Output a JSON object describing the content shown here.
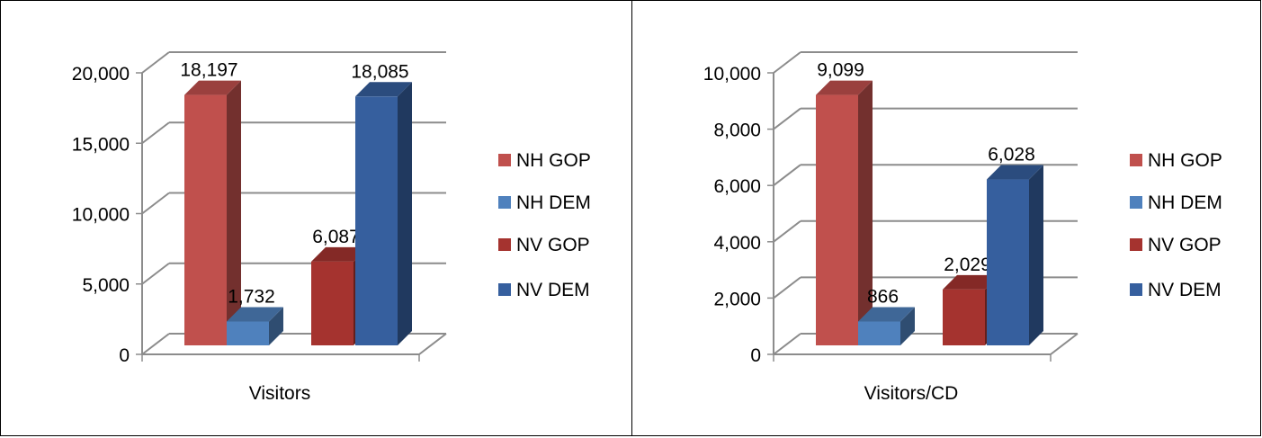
{
  "chart_data": [
    {
      "type": "bar",
      "title": "",
      "xlabel": "Visitors",
      "ylabel": "",
      "categories": [
        "Visitors"
      ],
      "series": [
        {
          "name": "NH GOP",
          "values": [
            18197
          ],
          "color": "#c0504d",
          "label": "18,197"
        },
        {
          "name": "NH DEM",
          "values": [
            1732
          ],
          "color": "#4f81bd",
          "label": "1,732"
        },
        {
          "name": "NV GOP",
          "values": [
            6087
          ],
          "color": "#a5332f",
          "label": "6,087"
        },
        {
          "name": "NV DEM",
          "values": [
            18085
          ],
          "color": "#365f9e",
          "label": "18,085"
        }
      ],
      "ylim": [
        0,
        20000
      ],
      "yticks": [
        0,
        5000,
        10000,
        15000,
        20000
      ],
      "ytick_labels": [
        "0",
        "5,000",
        "10,000",
        "15,000",
        "20,000"
      ],
      "grid": true,
      "legend_position": "right"
    },
    {
      "type": "bar",
      "title": "",
      "xlabel": "Visitors/CD",
      "ylabel": "",
      "categories": [
        "Visitors/CD"
      ],
      "series": [
        {
          "name": "NH GOP",
          "values": [
            9099
          ],
          "color": "#c0504d",
          "label": "9,099"
        },
        {
          "name": "NH DEM",
          "values": [
            866
          ],
          "color": "#4f81bd",
          "label": "866"
        },
        {
          "name": "NV GOP",
          "values": [
            2029
          ],
          "color": "#a5332f",
          "label": "2,029"
        },
        {
          "name": "NV DEM",
          "values": [
            6028
          ],
          "color": "#365f9e",
          "label": "6,028"
        }
      ],
      "ylim": [
        0,
        10000
      ],
      "yticks": [
        0,
        2000,
        4000,
        6000,
        8000,
        10000
      ],
      "ytick_labels": [
        "0",
        "2,000",
        "4,000",
        "6,000",
        "8,000",
        "10,000"
      ],
      "grid": true,
      "legend_position": "right"
    }
  ]
}
